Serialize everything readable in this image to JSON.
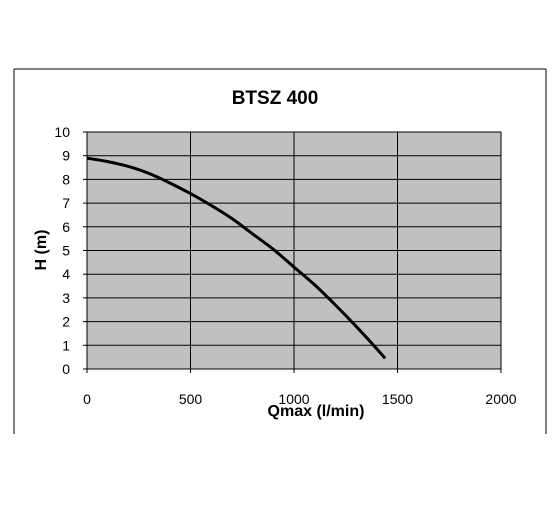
{
  "chart_data": {
    "type": "line",
    "title": "BTSZ 400",
    "xlabel": "Qmax (l/min)",
    "ylabel": "H (m)",
    "xlim": [
      0,
      2000
    ],
    "ylim": [
      0,
      10
    ],
    "x_ticks": [
      0,
      500,
      1000,
      1500,
      2000
    ],
    "y_ticks": [
      0,
      1,
      2,
      3,
      4,
      5,
      6,
      7,
      8,
      9,
      10
    ],
    "grid": true,
    "legend": "none",
    "series": [
      {
        "x": [
          0,
          100,
          200,
          300,
          400,
          500,
          600,
          700,
          800,
          900,
          1000,
          1100,
          1200,
          1300,
          1400,
          1440
        ],
        "y": [
          8.9,
          8.75,
          8.55,
          8.25,
          7.85,
          7.4,
          6.9,
          6.35,
          5.7,
          5.05,
          4.3,
          3.55,
          2.7,
          1.8,
          0.85,
          0.45
        ]
      }
    ],
    "colors": {
      "plot_background": "#c0c0c0",
      "line": "#000000",
      "grid": "#000000"
    }
  }
}
